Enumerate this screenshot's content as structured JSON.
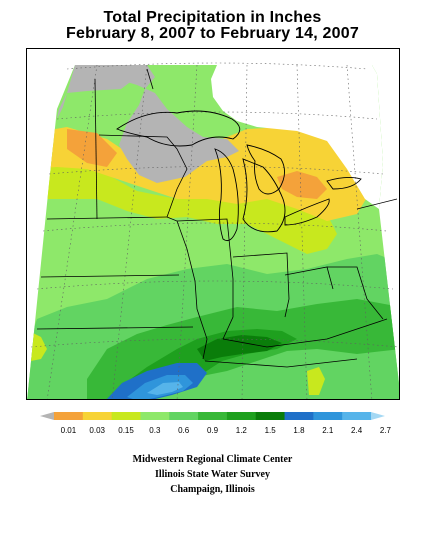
{
  "title": {
    "line1": "Total Precipitation in Inches",
    "line2": "February 8, 2007 to February 14, 2007"
  },
  "legend": {
    "labels": [
      "0.01",
      "0.03",
      "0.15",
      "0.3",
      "0.6",
      "0.9",
      "1.2",
      "1.5",
      "1.8",
      "2.1",
      "2.4",
      "2.7"
    ],
    "colors": [
      "#b4b4b4",
      "#f4a23a",
      "#f7d336",
      "#c8e81e",
      "#8ee86a",
      "#62d462",
      "#38b838",
      "#1ea01e",
      "#0a7d0a",
      "#1f70c8",
      "#2f95db",
      "#56b4ea",
      "#a4d8f4"
    ]
  },
  "credits": {
    "line1": "Midwestern Regional Climate Center",
    "line2": "Illinois State Water Survey",
    "line3": "Champaign, Illinois"
  }
}
